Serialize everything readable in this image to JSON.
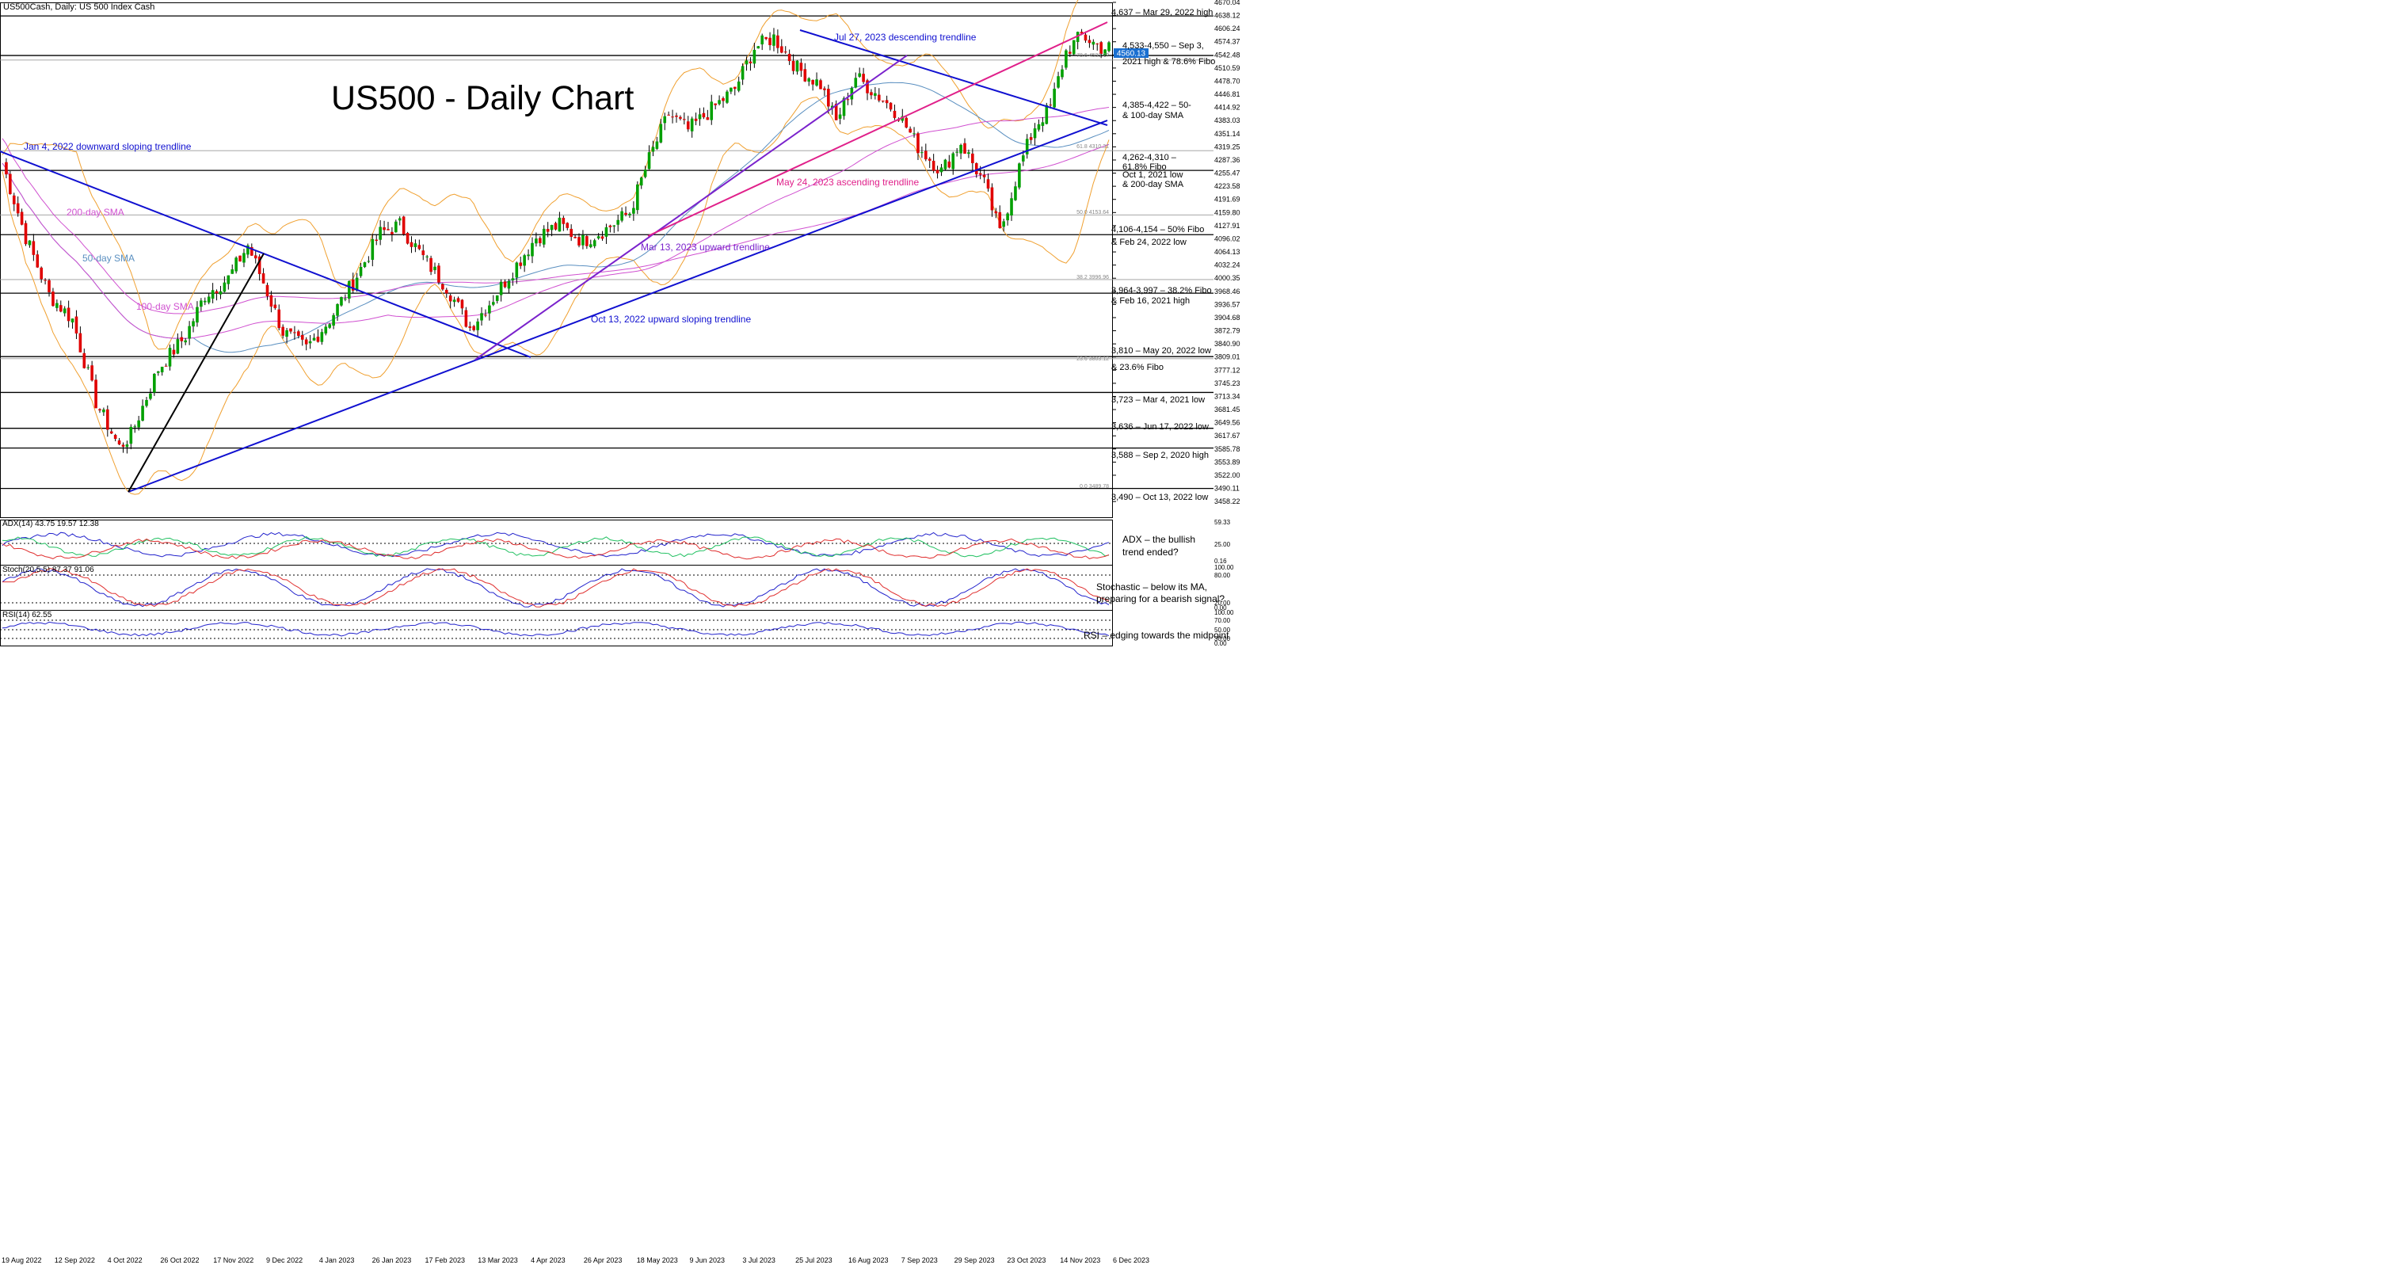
{
  "header": {
    "symbol": "US500Cash, Daily:",
    "description": "US 500 Index Cash"
  },
  "title": "US500 - Daily Chart",
  "colors": {
    "bull": "#00a000",
    "bear": "#e00000",
    "wick": "#000000",
    "blue_trend": "#1010d0",
    "magenta_trend": "#e0208a",
    "purple_trend": "#7a22cc",
    "black_trend": "#000000",
    "sma200": "#d050d0",
    "sma50": "#5a8fc0",
    "bollinger": "#f0a030",
    "adx": "#2222cc",
    "di_plus": "#20c060",
    "di_minus": "#e03030",
    "stoch_main": "#2222cc",
    "stoch_signal": "#e03030",
    "rsi": "#2222cc"
  },
  "chart_data": {
    "type": "candlestick",
    "y_axis": {
      "ylim": [
        3420,
        4670
      ],
      "ticks": [
        "4670.04",
        "4638.12",
        "4606.24",
        "4574.37",
        "4542.48",
        "4510.59",
        "4478.70",
        "4446.81",
        "4414.92",
        "4383.03",
        "4351.14",
        "4319.25",
        "4287.36",
        "4255.47",
        "4223.58",
        "4191.69",
        "4159.80",
        "4127.91",
        "4096.02",
        "4064.13",
        "4032.24",
        "4000.35",
        "3968.46",
        "3936.57",
        "3904.68",
        "3872.79",
        "3840.90",
        "3809.01",
        "3777.12",
        "3745.23",
        "3713.34",
        "3681.45",
        "3649.56",
        "3617.67",
        "3585.78",
        "3553.89",
        "3522.00",
        "3490.11",
        "3458.22"
      ],
      "current_price_label": "4560.13"
    },
    "x_axis": {
      "labels": [
        "19 Aug 2022",
        "12 Sep 2022",
        "4 Oct 2022",
        "26 Oct 2022",
        "17 Nov 2022",
        "9 Dec 2022",
        "4 Jan 2023",
        "26 Jan 2023",
        "17 Feb 2023",
        "13 Mar 2023",
        "4 Apr 2023",
        "26 Apr 2023",
        "18 May 2023",
        "9 Jun 2023",
        "3 Jul 2023",
        "25 Jul 2023",
        "16 Aug 2023",
        "7 Sep 2023",
        "29 Sep 2023",
        "23 Oct 2023",
        "14 Nov 2023",
        "6 Dec 2023"
      ]
    },
    "price_path": [
      {
        "idx": 0,
        "close": 4280
      },
      {
        "idx": 6,
        "close": 4100
      },
      {
        "idx": 12,
        "close": 3960
      },
      {
        "idx": 18,
        "close": 3900
      },
      {
        "idx": 24,
        "close": 3700
      },
      {
        "idx": 30,
        "close": 3590
      },
      {
        "idx": 33,
        "close": 3620
      },
      {
        "idx": 40,
        "close": 3780
      },
      {
        "idx": 47,
        "close": 3860
      },
      {
        "idx": 52,
        "close": 3960
      },
      {
        "idx": 58,
        "close": 4000
      },
      {
        "idx": 63,
        "close": 4080
      },
      {
        "idx": 67,
        "close": 3990
      },
      {
        "idx": 72,
        "close": 3870
      },
      {
        "idx": 78,
        "close": 3830
      },
      {
        "idx": 84,
        "close": 3900
      },
      {
        "idx": 90,
        "close": 3990
      },
      {
        "idx": 97,
        "close": 4110
      },
      {
        "idx": 102,
        "close": 4130
      },
      {
        "idx": 108,
        "close": 4050
      },
      {
        "idx": 114,
        "close": 3980
      },
      {
        "idx": 120,
        "close": 3880
      },
      {
        "idx": 125,
        "close": 3940
      },
      {
        "idx": 131,
        "close": 4020
      },
      {
        "idx": 137,
        "close": 4100
      },
      {
        "idx": 143,
        "close": 4130
      },
      {
        "idx": 149,
        "close": 4090
      },
      {
        "idx": 155,
        "close": 4120
      },
      {
        "idx": 161,
        "close": 4160
      },
      {
        "idx": 166,
        "close": 4290
      },
      {
        "idx": 171,
        "close": 4400
      },
      {
        "idx": 176,
        "close": 4360
      },
      {
        "idx": 182,
        "close": 4410
      },
      {
        "idx": 188,
        "close": 4460
      },
      {
        "idx": 193,
        "close": 4560
      },
      {
        "idx": 198,
        "close": 4585
      },
      {
        "idx": 204,
        "close": 4510
      },
      {
        "idx": 210,
        "close": 4470
      },
      {
        "idx": 214,
        "close": 4380
      },
      {
        "idx": 219,
        "close": 4490
      },
      {
        "idx": 224,
        "close": 4450
      },
      {
        "idx": 230,
        "close": 4400
      },
      {
        "idx": 235,
        "close": 4320
      },
      {
        "idx": 241,
        "close": 4260
      },
      {
        "idx": 246,
        "close": 4330
      },
      {
        "idx": 252,
        "close": 4230
      },
      {
        "idx": 256,
        "close": 4110
      },
      {
        "idx": 261,
        "close": 4270
      },
      {
        "idx": 265,
        "close": 4370
      },
      {
        "idx": 269,
        "close": 4415
      },
      {
        "idx": 273,
        "close": 4550
      },
      {
        "idx": 277,
        "close": 4590
      },
      {
        "idx": 282,
        "close": 4560
      }
    ],
    "horizontal_levels": [
      {
        "price": 4637,
        "label": "4,637 – Mar 29, 2022 high"
      },
      {
        "price": 4541,
        "label": "4,533-4,550 – Sep 3,"
      },
      {
        "price": 4530,
        "label": ""
      },
      {
        "price": 4310,
        "label": ""
      },
      {
        "price": 4262,
        "label": ""
      },
      {
        "price": 4154,
        "label": ""
      },
      {
        "price": 4106,
        "label": ""
      },
      {
        "price": 3997,
        "label": ""
      },
      {
        "price": 3964,
        "label": ""
      },
      {
        "price": 3810,
        "label": ""
      },
      {
        "price": 3805,
        "label": ""
      },
      {
        "price": 3723,
        "label": ""
      },
      {
        "price": 3636,
        "label": ""
      },
      {
        "price": 3588,
        "label": ""
      },
      {
        "price": 3490,
        "label": ""
      }
    ],
    "fibo_labels": [
      "78.6 4533.??",
      "61.8 4310.31",
      "50.0 4153.64",
      "38.2 3996.96",
      "23.6 3803.12",
      "0.0 3489.78"
    ],
    "indicators": {
      "adx_header": "ADX(14) 43.75 19.57 12.38",
      "adx_ticks": [
        "59.33",
        "25.00",
        "0.16"
      ],
      "stoch_header": "Stoch(20,5,5) 87.37 91.06",
      "stoch_ticks": [
        "100.00",
        "80.00",
        "20.00",
        "0.00"
      ],
      "rsi_header": "RSI(14) 62.55",
      "rsi_ticks": [
        "100.00",
        "70.00",
        "50.00",
        "30.00",
        "0.00"
      ]
    }
  },
  "annotations": {
    "level_4637": "4,637 – Mar 29, 2022 high",
    "level_4533_a": "4,533-4,550 – Sep 3,",
    "level_4533_b": "2021 high & 78.6% Fibo",
    "level_4385_a": "4,385-4,422 – 50-",
    "level_4385_b": "& 100-day SMA",
    "level_4262_a": "4,262-4,310 –",
    "level_4262_b": "61.8% Fibo",
    "level_oct1_a": "Oct 1, 2021 low",
    "level_oct1_b": "& 200-day SMA",
    "level_4106_a": "4,106-4,154 – 50% Fibo",
    "level_4106_b": "& Feb 24, 2022 low",
    "level_3964_a": "3,964-3,997 – 38.2% Fibo",
    "level_3964_b": "& Feb 16, 2021 high",
    "level_3810_a": "3,810 – May 20, 2022 low",
    "level_3810_b": "& 23.6% Fibo",
    "level_3723": "3,723 – Mar 4, 2021 low",
    "level_3636": "3,636 – Jun 17, 2022 low",
    "level_3588": "3,588 – Sep 2, 2020 high",
    "level_3490": "3,490 – Oct 13, 2022 low",
    "trend_jan4": "Jan 4, 2022 downward sloping trendline",
    "trend_jul27": "Jul 27, 2023 descending trendline",
    "trend_may24": "May 24, 2023 ascending trendline",
    "trend_mar13": "Mar 13, 2023 upward trendline",
    "trend_oct13": "Oct 13, 2022 upward sloping trendline",
    "sma200": "200-day SMA",
    "sma50": "50-day SMA",
    "sma100": "100-day SMA",
    "adx_note_a": "ADX – the bullish",
    "adx_note_b": "trend ended?",
    "stoch_note_a": "Stochastic – below its MA,",
    "stoch_note_b": "preparing for a bearish signal?",
    "rsi_note": "RSI – edging towards the midpoint"
  }
}
